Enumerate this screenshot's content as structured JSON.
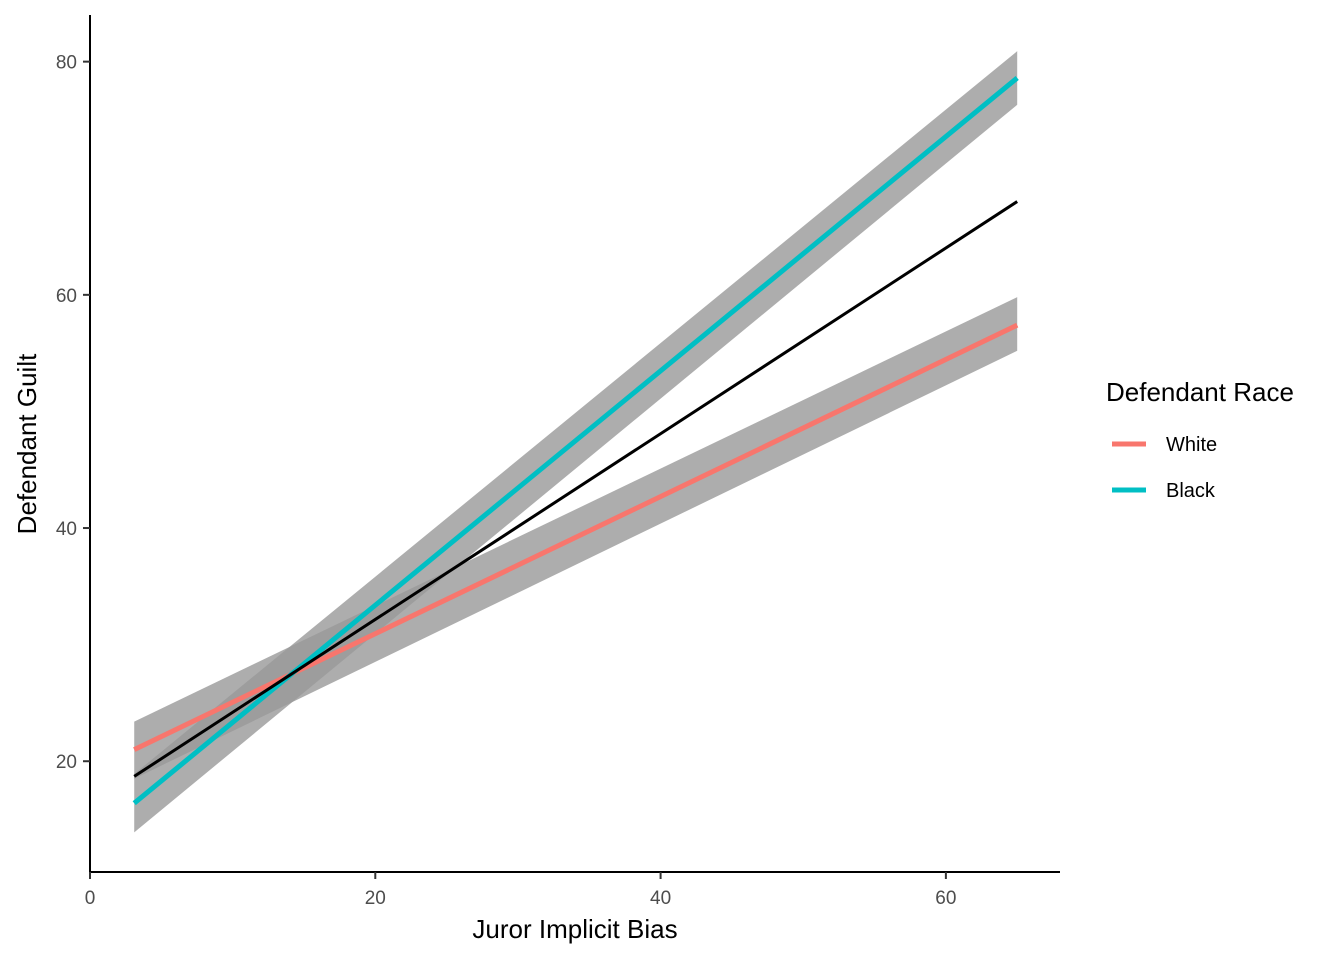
{
  "chart_data": {
    "type": "line",
    "xlabel": "Juror Implicit Bias",
    "ylabel": "Defendant Guilt",
    "xlim": [
      0,
      68
    ],
    "ylim": [
      10.5,
      84
    ],
    "x_ticks": [
      0,
      20,
      40,
      60
    ],
    "y_ticks": [
      20,
      40,
      60,
      80
    ],
    "grid": false,
    "legend": {
      "title": "Defendant Race",
      "position": "right"
    },
    "series": [
      {
        "name": "White",
        "color": "#F8766D",
        "x": [
          3.1,
          65
        ],
        "y": [
          21.0,
          57.4
        ],
        "ci_lower": [
          18.5,
          55.2
        ],
        "ci_upper": [
          23.4,
          59.8
        ]
      },
      {
        "name": "Black",
        "color": "#00BFC4",
        "x": [
          3.1,
          65
        ],
        "y": [
          16.4,
          78.6
        ],
        "ci_lower": [
          13.9,
          76.3
        ],
        "ci_upper": [
          18.9,
          80.9
        ]
      }
    ],
    "overall_line": {
      "color": "#000000",
      "x": [
        3.1,
        65
      ],
      "y": [
        18.7,
        68.0
      ]
    }
  }
}
